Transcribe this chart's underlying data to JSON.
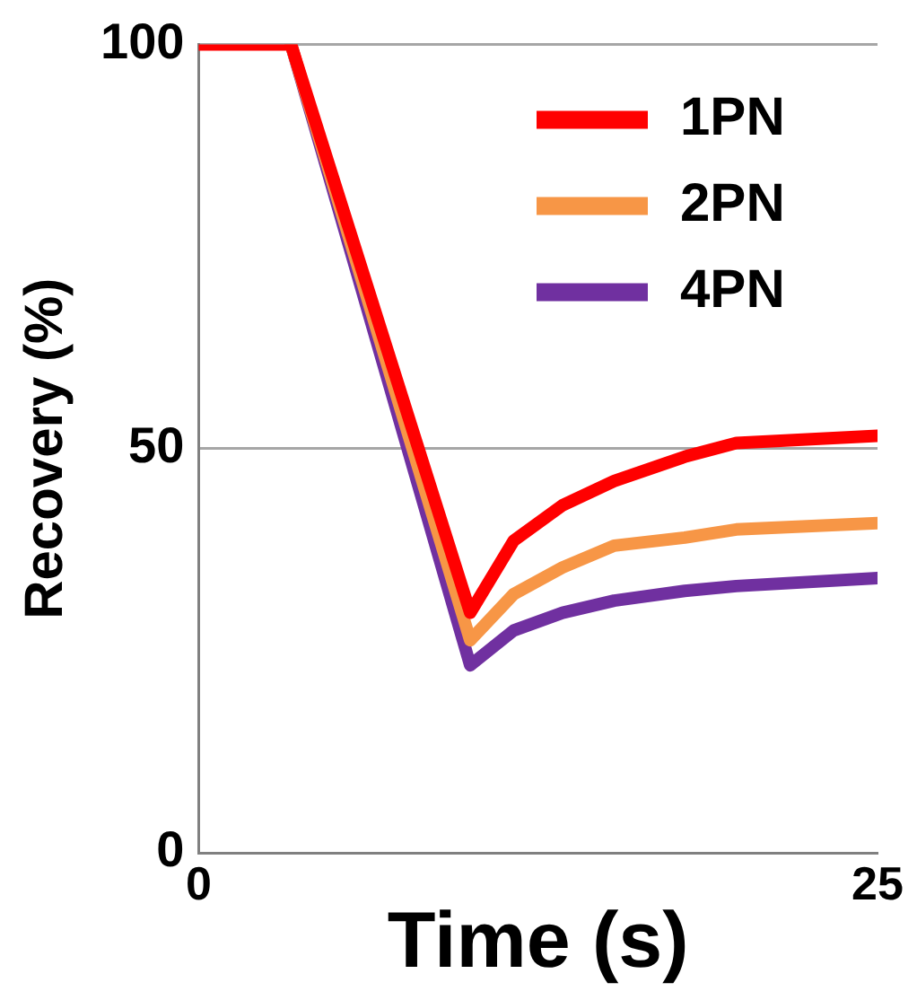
{
  "chart_data": {
    "type": "line",
    "xlabel": "Time (s)",
    "ylabel": "Recovery (%)",
    "xlim": [
      0,
      25
    ],
    "xticks": [
      0,
      25
    ],
    "ylim": [
      0,
      100
    ],
    "yticks": [
      0,
      50,
      100
    ],
    "grid": "y",
    "legend": "top right",
    "marker": "none",
    "line_style": "solid",
    "series": [
      {
        "name": "1PN",
        "color": "#ff0000",
        "x": [
          0,
          3.4,
          10,
          11.6,
          13.4,
          15.3,
          17.9,
          19.8,
          25
        ],
        "values": [
          100,
          100,
          29.7,
          38.6,
          43,
          46,
          49,
          50.7,
          51.6
        ]
      },
      {
        "name": "2PN",
        "color": "#f79646",
        "x": [
          3.4,
          10,
          11.6,
          13.4,
          15.3,
          17.9,
          19.8,
          25
        ],
        "values": [
          100,
          26.3,
          32,
          35.3,
          38,
          39,
          40,
          40.8
        ]
      },
      {
        "name": "4PN",
        "color": "#7030a0",
        "x": [
          3.4,
          10,
          11.6,
          13.4,
          15.3,
          17.9,
          19.8,
          25
        ],
        "values": [
          100,
          23.2,
          27.5,
          29.7,
          31.2,
          32.4,
          33,
          34
        ]
      }
    ]
  }
}
